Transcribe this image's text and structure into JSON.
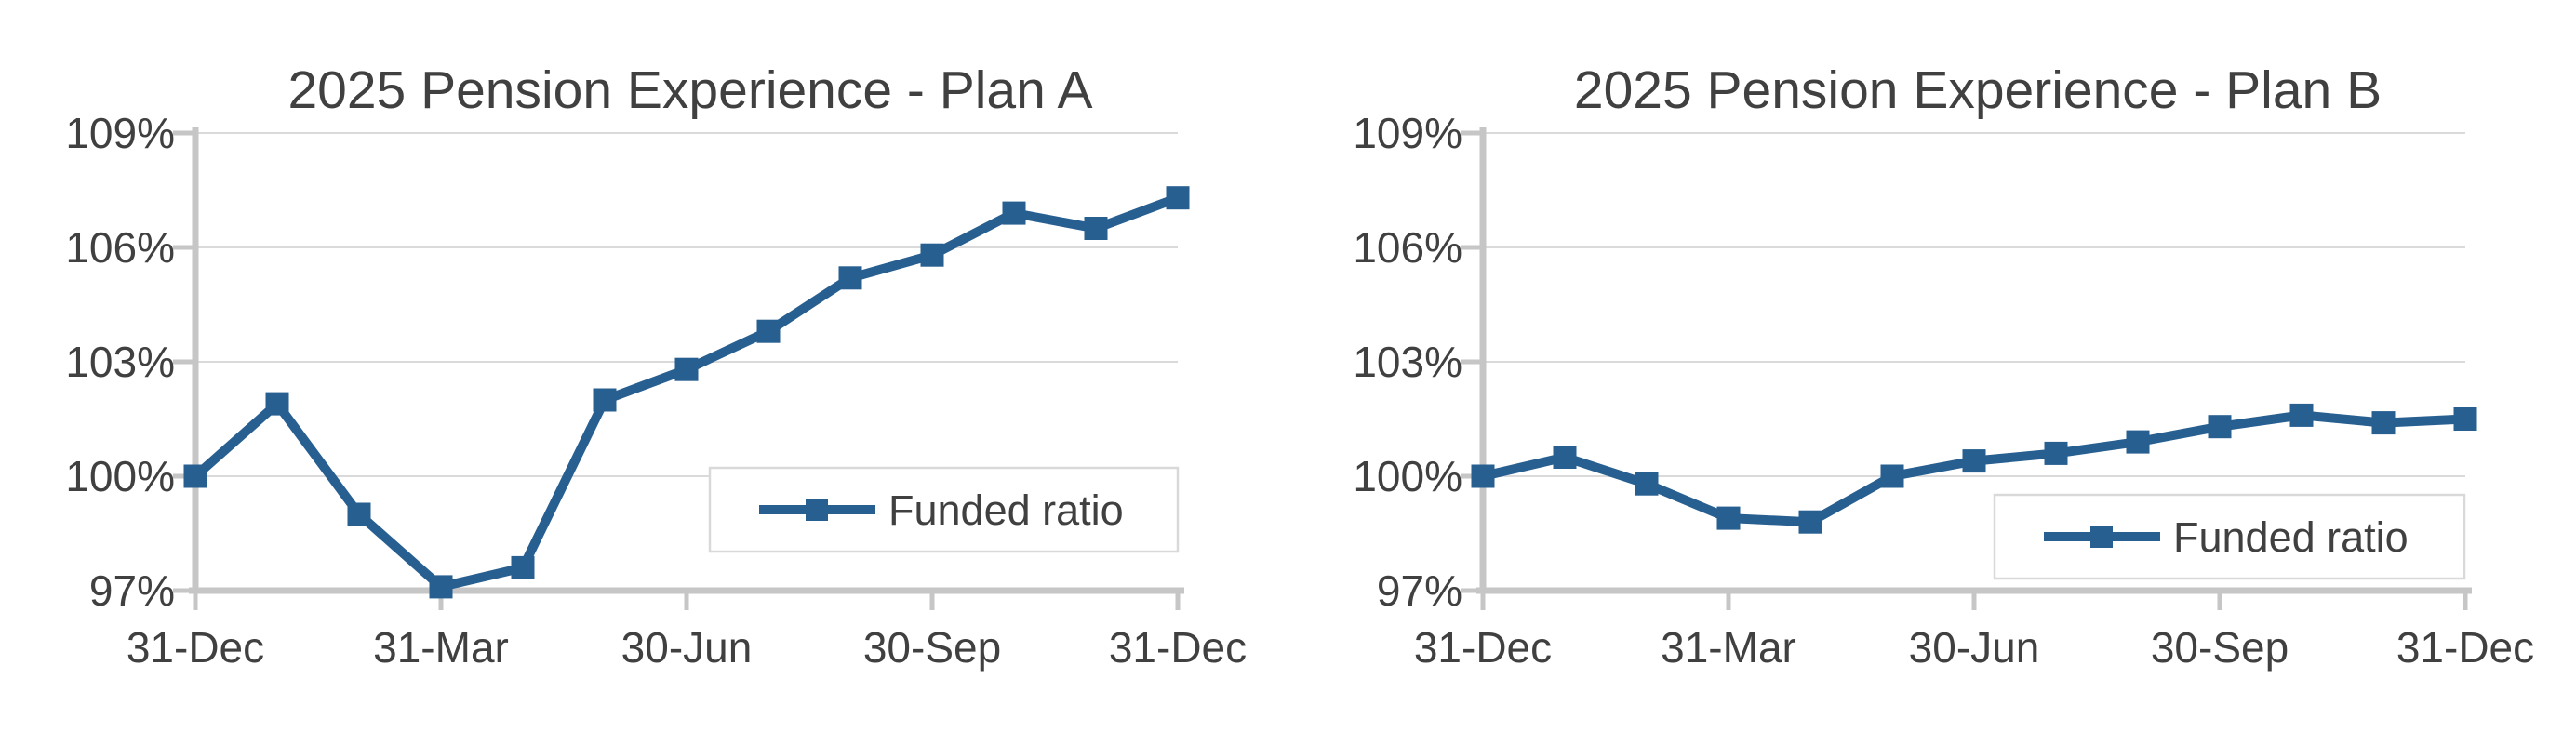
{
  "chart_data": [
    {
      "type": "line",
      "title": "2025 Pension Experience - Plan A",
      "ylim": [
        97,
        109
      ],
      "n_points": 13,
      "grid": "horizontal",
      "legend_position": "inside-bottom-right",
      "x_ticks": [
        {
          "pos": 0,
          "label": "31-Dec"
        },
        {
          "pos": 3,
          "label": "31-Mar"
        },
        {
          "pos": 6,
          "label": "30-Jun"
        },
        {
          "pos": 9,
          "label": "30-Sep"
        },
        {
          "pos": 12,
          "label": "31-Dec"
        }
      ],
      "y_ticks": [
        {
          "value": 109,
          "label": "109%"
        },
        {
          "value": 106,
          "label": "106%"
        },
        {
          "value": 103,
          "label": "103%"
        },
        {
          "value": 100,
          "label": "100%"
        },
        {
          "value": 97,
          "label": "97%"
        }
      ],
      "series": [
        {
          "name": "Funded ratio",
          "marker": "square",
          "color": "#275F91",
          "values": [
            100.0,
            101.9,
            99.0,
            97.1,
            97.6,
            102.0,
            102.8,
            103.8,
            105.2,
            105.8,
            106.9,
            106.5,
            107.3
          ]
        }
      ],
      "colors": {
        "title": "#2A65A3",
        "axis_text": "#404040",
        "gridline": "#DADADA",
        "axis_line": "#C6C6C6",
        "legend_border": "#D9D9D9",
        "legend_text": "#404040",
        "plot_background": "#FFFFFF"
      }
    },
    {
      "type": "line",
      "title": "2025 Pension Experience - Plan B",
      "ylim": [
        97,
        109
      ],
      "n_points": 13,
      "grid": "horizontal",
      "legend_position": "inside-bottom-right",
      "x_ticks": [
        {
          "pos": 0,
          "label": "31-Dec"
        },
        {
          "pos": 3,
          "label": "31-Mar"
        },
        {
          "pos": 6,
          "label": "30-Jun"
        },
        {
          "pos": 9,
          "label": "30-Sep"
        },
        {
          "pos": 12,
          "label": "31-Dec"
        }
      ],
      "y_ticks": [
        {
          "value": 109,
          "label": "109%"
        },
        {
          "value": 106,
          "label": "106%"
        },
        {
          "value": 103,
          "label": "103%"
        },
        {
          "value": 100,
          "label": "100%"
        },
        {
          "value": 97,
          "label": "97%"
        }
      ],
      "series": [
        {
          "name": "Funded ratio",
          "marker": "square",
          "color": "#275F91",
          "values": [
            100.0,
            100.5,
            99.8,
            98.9,
            98.8,
            100.0,
            100.4,
            100.6,
            100.9,
            101.3,
            101.6,
            101.4,
            101.5
          ]
        }
      ],
      "colors": {
        "title": "#2A65A3",
        "axis_text": "#404040",
        "gridline": "#DADADA",
        "axis_line": "#C6C6C6",
        "legend_border": "#D9D9D9",
        "legend_text": "#404040",
        "plot_background": "#FFFFFF"
      }
    }
  ]
}
